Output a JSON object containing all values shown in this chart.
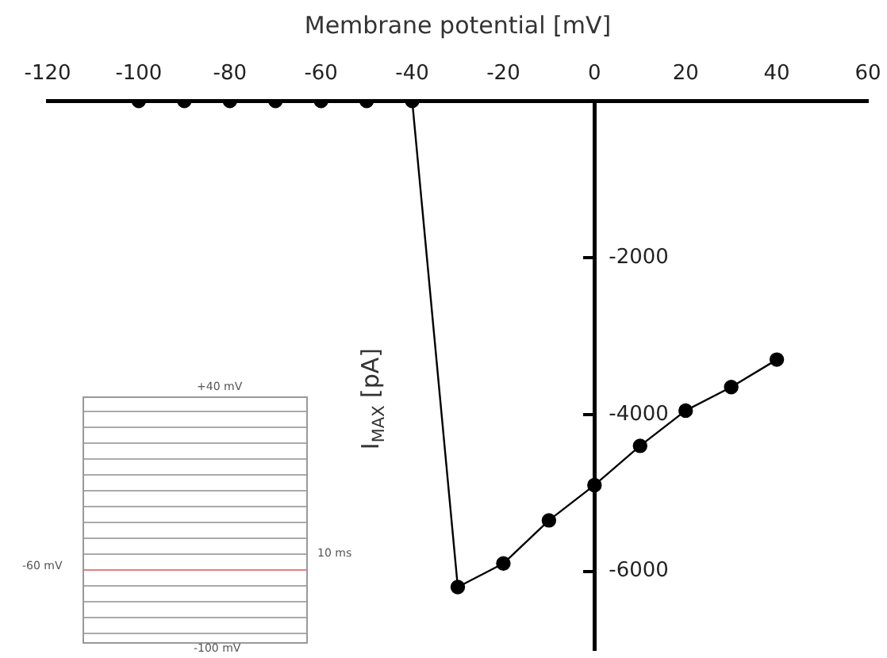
{
  "chart_data": {
    "type": "line",
    "xlabel": "Membrane potential [mV]",
    "ylabel": "I$_{MAX}$ [pA]",
    "x": [
      -100,
      -90,
      -80,
      -70,
      -60,
      -50,
      -40,
      -30,
      -20,
      -10,
      0,
      10,
      20,
      30,
      40
    ],
    "series": [
      {
        "color": "#000000",
        "values": [
          0,
          0,
          0,
          0,
          0,
          0,
          0,
          -6200,
          -5900,
          -5350,
          -4900,
          -4400,
          -3950,
          -3650,
          -3300
        ]
      }
    ],
    "xlim": [
      -120,
      60
    ],
    "xticks": [
      -120,
      -100,
      -80,
      -60,
      -40,
      -20,
      0,
      20,
      40,
      60
    ],
    "ylim": [
      -7000,
      0
    ],
    "yticks": [
      -2000,
      -4000,
      -6000
    ],
    "marker": "circle",
    "line_style": "solid",
    "legend": false,
    "annotations": [
      "+40 mV",
      "-60 mV",
      "-100 mV",
      "10 ms"
    ]
  }
}
